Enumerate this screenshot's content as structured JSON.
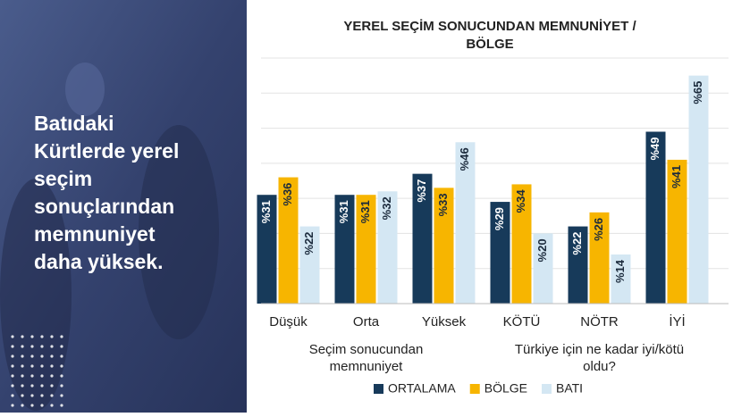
{
  "panel": {
    "headline": [
      "Batıdaki",
      "Kürtlerde yerel",
      "seçim",
      "sonuçlarından",
      "memnuniyet",
      "daha yüksek."
    ]
  },
  "chart_data": {
    "type": "bar",
    "title": [
      "YEREL SEÇİM SONUCUNDAN MEMNUNİYET /",
      "BÖLGE"
    ],
    "categories": [
      "Düşük",
      "Orta",
      "Yüksek",
      "KÖTÜ",
      "NÖTR",
      "İYİ"
    ],
    "groups": [
      {
        "label": [
          "Seçim sonucundan",
          "memnuniyet"
        ],
        "span": [
          0,
          2
        ]
      },
      {
        "label": [
          "Türkiye için ne kadar iyi/kötü",
          "oldu?"
        ],
        "span": [
          3,
          5
        ]
      }
    ],
    "series": [
      {
        "name": "ORTALAMA",
        "color": "#173a5a",
        "values": [
          31,
          31,
          37,
          29,
          22,
          49
        ],
        "value_labels": [
          "%31",
          "%31",
          "%37",
          "%29",
          "%22",
          "%49"
        ]
      },
      {
        "name": "BÖLGE",
        "color": "#f7b500",
        "values": [
          36,
          31,
          33,
          34,
          26,
          41
        ],
        "value_labels": [
          "%36",
          "%31",
          "%33",
          "%34",
          "%26",
          "%41"
        ]
      },
      {
        "name": "BATI",
        "color": "#d4e7f3",
        "values": [
          22,
          32,
          46,
          20,
          14,
          65
        ],
        "value_labels": [
          "%22",
          "%32",
          "%46",
          "%20",
          "%14",
          "%65"
        ]
      }
    ],
    "ylim": [
      0,
      70
    ],
    "yticks": [
      0,
      10,
      20,
      30,
      40,
      50,
      60,
      70
    ],
    "grid": true
  }
}
